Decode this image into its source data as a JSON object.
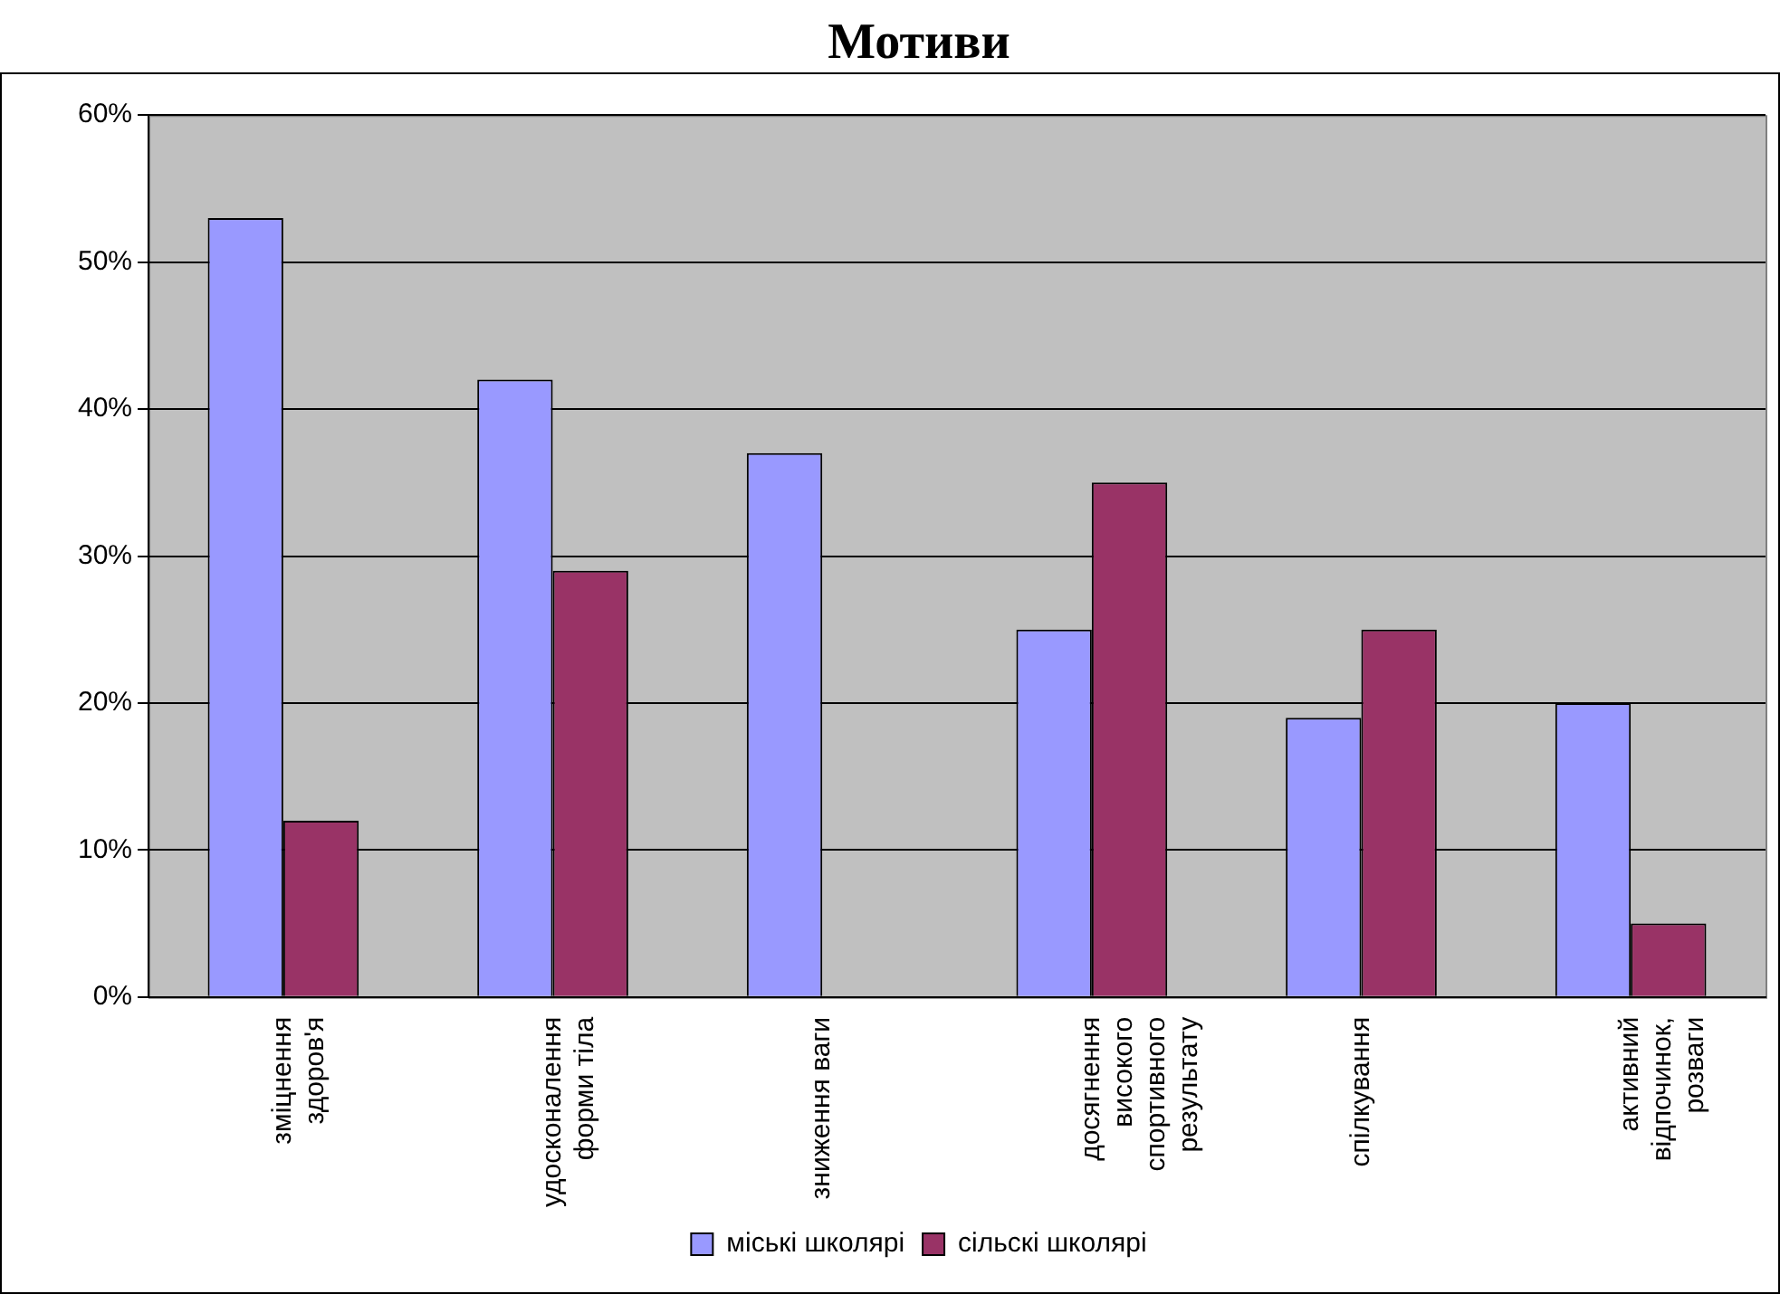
{
  "chart_data": {
    "type": "bar",
    "title": "Мотиви",
    "categories": [
      "зміцнення здоров'я",
      "удосконалення форми тіла",
      "зниження ваги",
      "досягнення високого спортивного результату",
      "спілкування",
      "активний відпочинок, розваги"
    ],
    "series": [
      {
        "name": "міські школярі",
        "color": "#9999ff",
        "values": [
          53,
          42,
          37,
          25,
          19,
          20
        ]
      },
      {
        "name": "сільскі школярі",
        "color": "#993366",
        "values": [
          12,
          29,
          0,
          35,
          25,
          5
        ]
      }
    ],
    "ylim": [
      0,
      60
    ],
    "yticks": [
      {
        "value": 0,
        "label": "0%"
      },
      {
        "value": 10,
        "label": "10%"
      },
      {
        "value": 20,
        "label": "20%"
      },
      {
        "value": 30,
        "label": "30%"
      },
      {
        "value": 40,
        "label": "40%"
      },
      {
        "value": 50,
        "label": "50%"
      },
      {
        "value": 60,
        "label": "60%"
      }
    ],
    "grid": "y",
    "legend": "bottom"
  }
}
